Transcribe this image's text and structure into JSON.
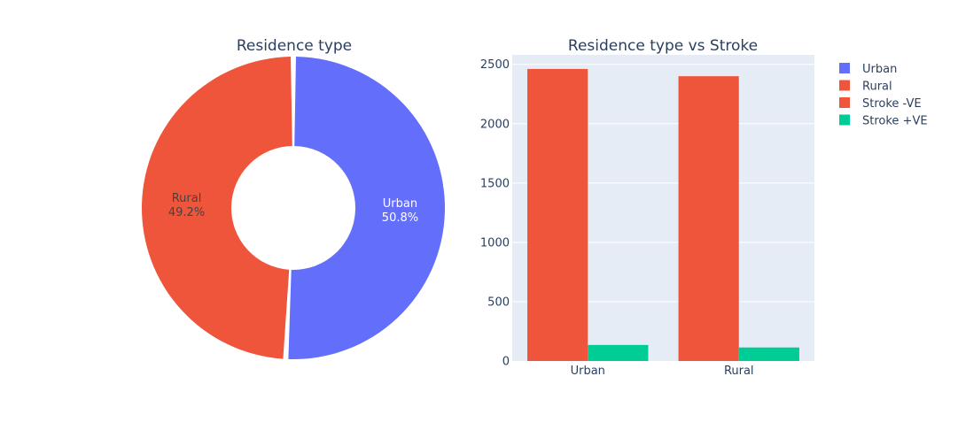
{
  "chart_data": [
    {
      "type": "pie",
      "title": "Residence type",
      "hole": true,
      "slices": [
        {
          "label": "Urban",
          "percent": 50.8,
          "percent_label": "50.8%",
          "color": "#636efa"
        },
        {
          "label": "Rural",
          "percent": 49.2,
          "percent_label": "49.2%",
          "color": "#ef553b"
        }
      ]
    },
    {
      "type": "bar",
      "title": "Residence type vs Stroke",
      "categories": [
        "Urban",
        "Rural"
      ],
      "series": [
        {
          "name": "Stroke -VE",
          "values": [
            2461,
            2400
          ],
          "color": "#ef553b"
        },
        {
          "name": "Stroke +VE",
          "values": [
            135,
            114
          ],
          "color": "#00cc96"
        }
      ],
      "ylim": [
        0,
        2580
      ],
      "yticks": [
        0,
        500,
        1000,
        1500,
        2000,
        2500
      ],
      "ytick_labels": [
        "0",
        "500",
        "1000",
        "1500",
        "2000",
        "2500"
      ],
      "grid": true,
      "plot_bg": "#e5ecf6"
    }
  ],
  "legend": {
    "placement": "top-right",
    "items": [
      {
        "label": "Urban",
        "color": "#636efa"
      },
      {
        "label": "Rural",
        "color": "#ef553b"
      },
      {
        "label": "Stroke -VE",
        "color": "#ef553b"
      },
      {
        "label": "Stroke +VE",
        "color": "#00cc96"
      }
    ]
  }
}
